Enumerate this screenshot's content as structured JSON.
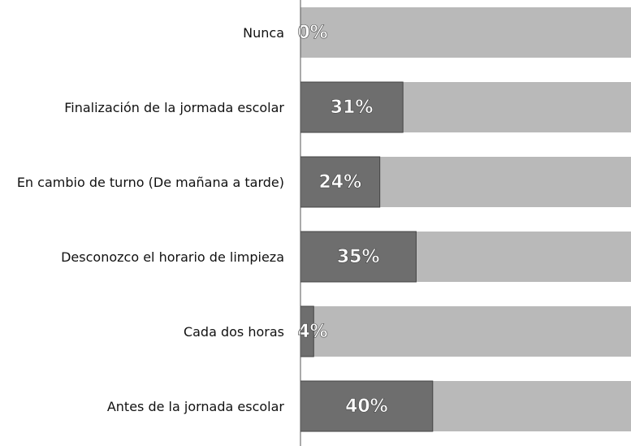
{
  "chart_data": {
    "type": "bar",
    "orientation": "horizontal",
    "categories": [
      "Nunca",
      "Finalización de la jormada escolar",
      "En cambio de turno (De mañana a tarde)",
      "Desconozco el horario de limpieza",
      "Cada dos horas",
      "Antes de la jornada escolar"
    ],
    "values": [
      0,
      31,
      24,
      35,
      4,
      40
    ],
    "value_labels": [
      "0%",
      "31%",
      "24%",
      "35%",
      "4%",
      "40%"
    ],
    "color": "#6e6e6e",
    "xlim": [
      0,
      100
    ]
  }
}
